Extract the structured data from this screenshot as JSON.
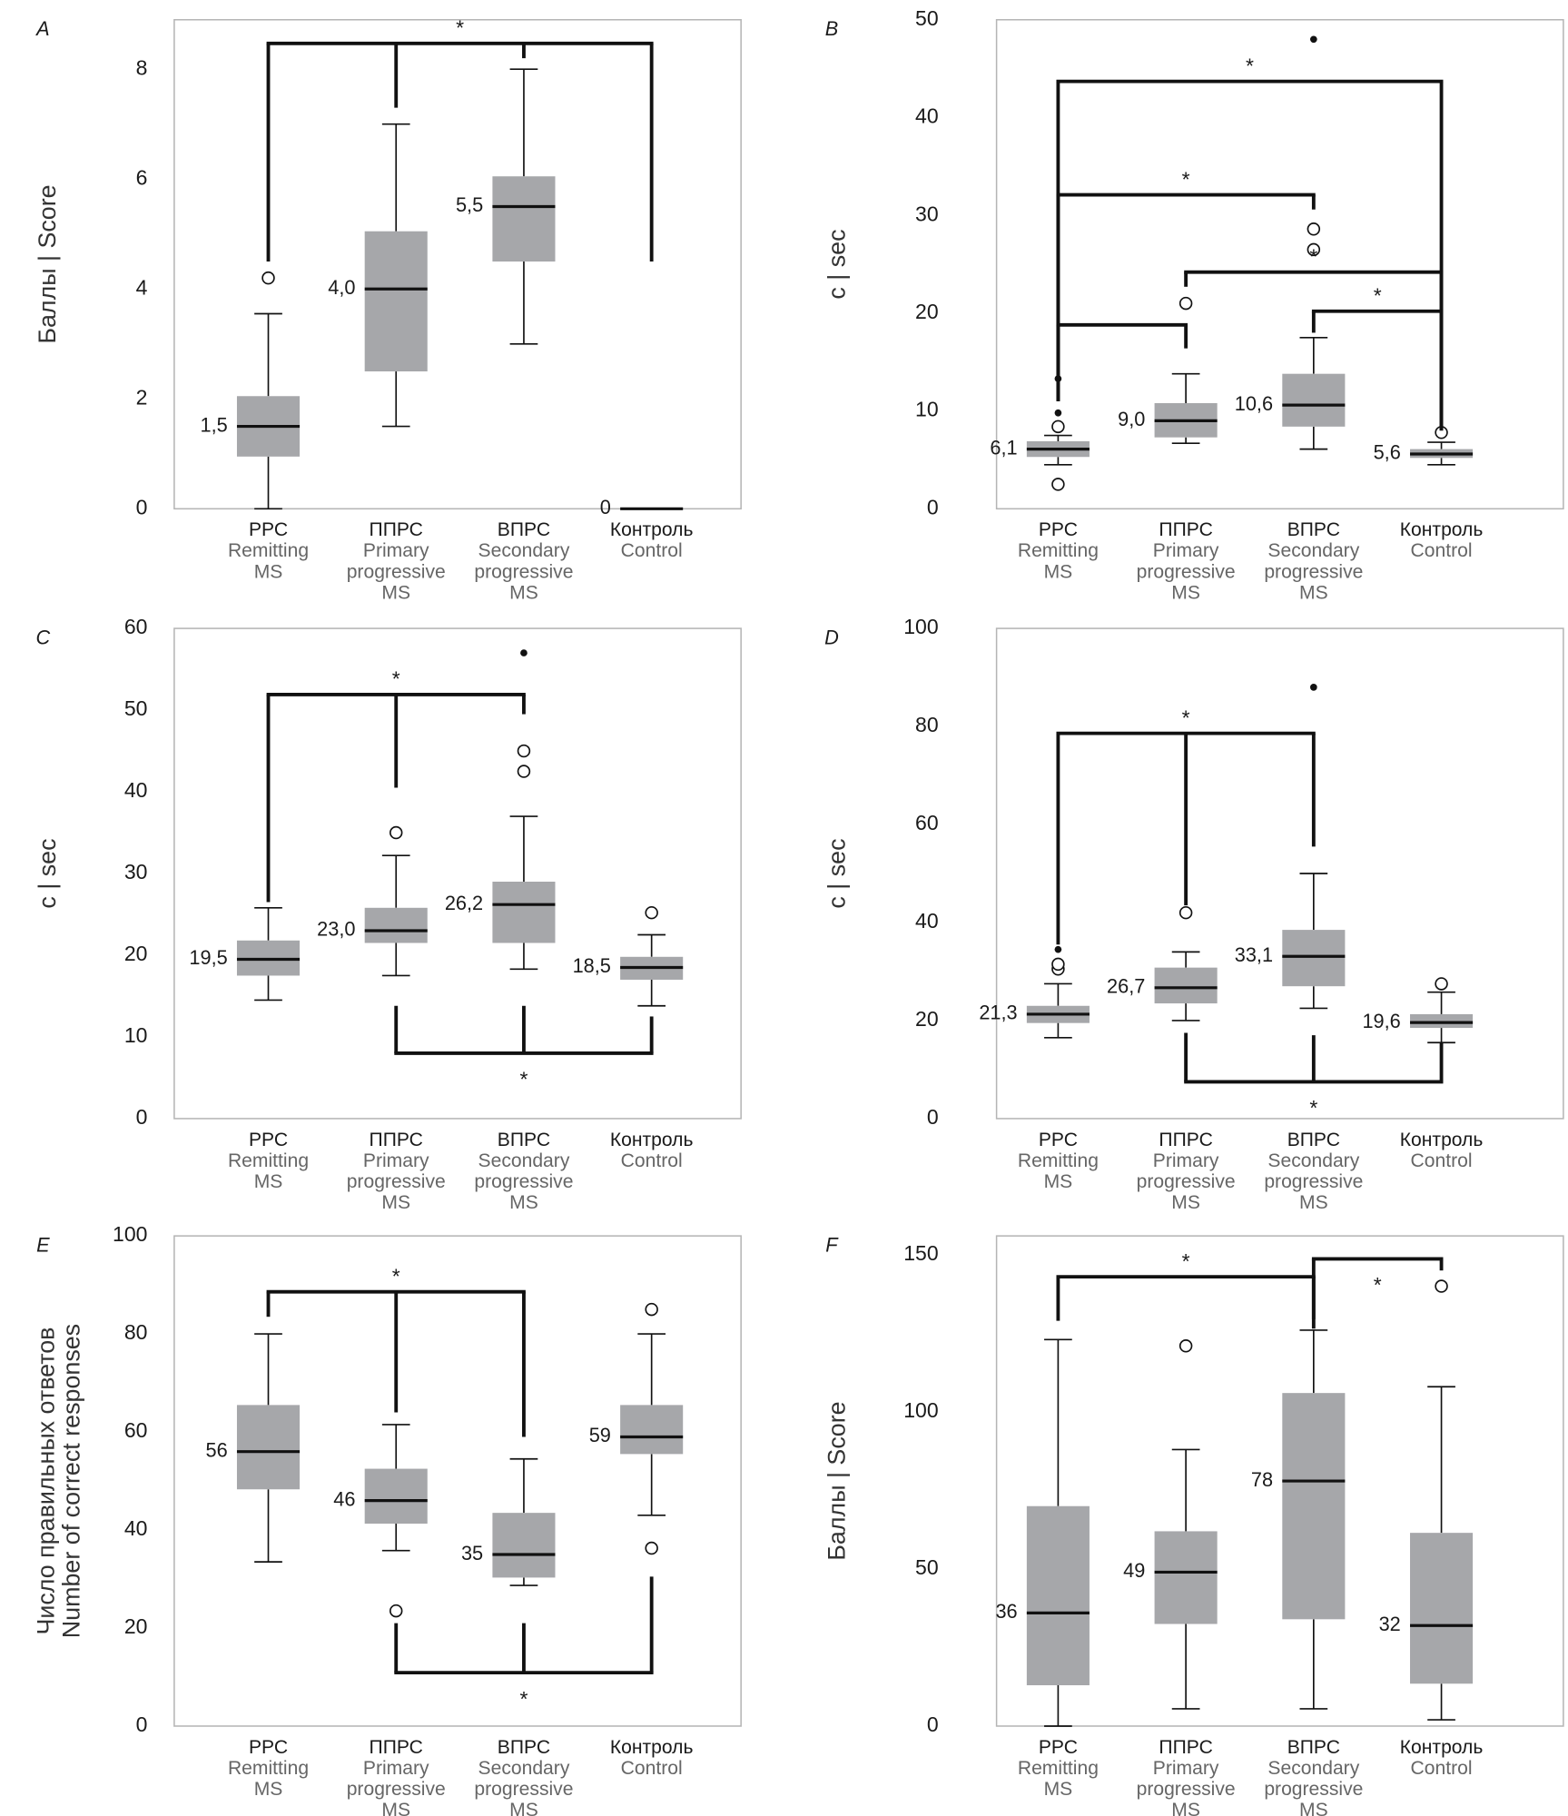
{
  "chart_data": [
    {
      "type": "box",
      "panel": "A",
      "ylabel": [
        "Баллы | Score"
      ],
      "color": "#a6a7aa",
      "categories": [
        [
          "РРС",
          "Remitting",
          "MS"
        ],
        [
          "ППРС",
          "Primary",
          "progressive",
          "MS"
        ],
        [
          "ВПРС",
          "Secondary",
          "progressive",
          "MS"
        ],
        [
          "Контроль",
          "Control"
        ]
      ],
      "ylim": [
        0,
        8.9
      ],
      "yticks": [
        0,
        2,
        4,
        6,
        8
      ],
      "boxes": [
        {
          "whislo": 0,
          "q1": 0.95,
          "median": 1.5,
          "q3": 2.05,
          "whishi": 3.55,
          "outliers": [
            4.2
          ],
          "median_label": "1,5"
        },
        {
          "whislo": 1.5,
          "q1": 2.5,
          "median": 4.0,
          "q3": 5.05,
          "whishi": 7.0,
          "median_label": "4,0"
        },
        {
          "whislo": 3.0,
          "q1": 4.5,
          "median": 5.5,
          "q3": 6.05,
          "whishi": 8.0,
          "median_label": "5,5"
        },
        {
          "whislo": 0,
          "q1": 0,
          "median": 0,
          "q3": 0,
          "whishi": 0,
          "median_label": "0"
        }
      ],
      "brackets": [
        {
          "y": 8.47,
          "drops": [
            [
              0,
              4.5
            ],
            [
              1,
              7.3
            ],
            [
              2,
              8.2
            ],
            [
              3,
              4.5
            ]
          ],
          "text": "*"
        }
      ]
    },
    {
      "type": "box",
      "panel": "B",
      "ylabel": [
        "с | sec"
      ],
      "color": "#a6a7aa",
      "categories": [
        [
          "РРС",
          "Remitting",
          "MS"
        ],
        [
          "ППРС",
          "Primary",
          "progressive",
          "MS"
        ],
        [
          "ВПРС",
          "Secondary",
          "progressive",
          "MS"
        ],
        [
          "Контроль",
          "Control"
        ]
      ],
      "ylim": [
        0,
        50
      ],
      "yticks": [
        0,
        10,
        20,
        30,
        40,
        50
      ],
      "boxes": [
        {
          "whislo": 4.5,
          "q1": 5.3,
          "median": 6.1,
          "q3": 6.9,
          "whishi": 7.5,
          "outliers": [
            2.5,
            8.4
          ],
          "extremes": [
            9.8,
            13.3
          ],
          "median_label": "6,1"
        },
        {
          "whislo": 6.7,
          "q1": 7.3,
          "median": 9.0,
          "q3": 10.8,
          "whishi": 13.8,
          "outliers": [
            21
          ],
          "median_label": "9,0"
        },
        {
          "whislo": 6.1,
          "q1": 8.4,
          "median": 10.6,
          "q3": 13.8,
          "whishi": 17.5,
          "outliers": [
            26.5,
            28.6
          ],
          "extremes": [
            48
          ],
          "median_label": "10,6"
        },
        {
          "whislo": 4.5,
          "q1": 5.2,
          "median": 5.6,
          "q3": 6.1,
          "whishi": 6.8,
          "outliers": [
            7.8
          ],
          "median_label": "5,6"
        }
      ],
      "brackets": [
        {
          "y": 43.7,
          "drops": [
            [
              0,
              11
            ],
            [
              3,
              8
            ]
          ],
          "text": "*"
        },
        {
          "y": 32.1,
          "drops": [
            [
              0,
              11
            ],
            [
              2,
              30.6
            ]
          ],
          "text": "*"
        },
        {
          "y": 24.2,
          "drops": [
            [
              1,
              22.7
            ],
            [
              3,
              8
            ]
          ],
          "text": "*"
        },
        {
          "y": 18.8,
          "drops": [
            [
              0,
              11
            ],
            [
              1,
              16.4
            ]
          ]
        },
        {
          "y": 20.2,
          "drops": [
            [
              2,
              18
            ],
            [
              3,
              8
            ]
          ],
          "text": "*"
        }
      ]
    },
    {
      "type": "box",
      "panel": "C",
      "ylabel": [
        "с | sec"
      ],
      "color": "#a6a7aa",
      "categories": [
        [
          "РРС",
          "Remitting",
          "MS"
        ],
        [
          "ППРС",
          "Primary",
          "progressive",
          "MS"
        ],
        [
          "ВПРС",
          "Secondary",
          "progressive",
          "MS"
        ],
        [
          "Контроль",
          "Control"
        ]
      ],
      "ylim": [
        0,
        60
      ],
      "yticks": [
        0,
        10,
        20,
        30,
        40,
        50,
        60
      ],
      "boxes": [
        {
          "whislo": 14.5,
          "q1": 17.5,
          "median": 19.5,
          "q3": 21.8,
          "whishi": 25.8,
          "median_label": "19,5"
        },
        {
          "whislo": 17.5,
          "q1": 21.5,
          "median": 23.0,
          "q3": 25.8,
          "whishi": 32.2,
          "outliers": [
            35
          ],
          "median_label": "23,0"
        },
        {
          "whislo": 18.3,
          "q1": 21.5,
          "median": 26.2,
          "q3": 29,
          "whishi": 37,
          "outliers": [
            42.5,
            45
          ],
          "extremes": [
            57
          ],
          "median_label": "26,2"
        },
        {
          "whislo": 13.8,
          "q1": 17,
          "median": 18.5,
          "q3": 19.8,
          "whishi": 22.5,
          "outliers": [
            25.2
          ],
          "median_label": "18,5"
        }
      ],
      "brackets": [
        {
          "y": 51.9,
          "drops": [
            [
              0,
              26.5
            ],
            [
              1,
              40.5
            ],
            [
              2,
              49.5
            ]
          ],
          "text": "*"
        },
        {
          "y": 8,
          "drops": [
            [
              1,
              13.8
            ],
            [
              2,
              13.8
            ],
            [
              3,
              12.5
            ]
          ],
          "text": "*"
        }
      ]
    },
    {
      "type": "box",
      "panel": "D",
      "ylabel": [
        "с | sec"
      ],
      "color": "#a6a7aa",
      "categories": [
        [
          "РРС",
          "Remitting",
          "MS"
        ],
        [
          "ППРС",
          "Primary",
          "progressive",
          "MS"
        ],
        [
          "ВПРС",
          "Secondary",
          "progressive",
          "MS"
        ],
        [
          "Контроль",
          "Control"
        ]
      ],
      "ylim": [
        0,
        100
      ],
      "yticks": [
        0,
        20,
        40,
        60,
        80,
        100
      ],
      "boxes": [
        {
          "whislo": 16.5,
          "q1": 19.5,
          "median": 21.3,
          "q3": 23,
          "whishi": 27.5,
          "outliers": [
            30.5,
            31.5
          ],
          "extremes": [
            34.5
          ],
          "median_label": "21,3"
        },
        {
          "whislo": 20,
          "q1": 23.5,
          "median": 26.7,
          "q3": 30.8,
          "whishi": 34,
          "outliers": [
            42
          ],
          "median_label": "26,7"
        },
        {
          "whislo": 22.5,
          "q1": 27,
          "median": 33.1,
          "q3": 38.5,
          "whishi": 50,
          "extremes": [
            88
          ],
          "median_label": "33,1"
        },
        {
          "whislo": 15.5,
          "q1": 18.5,
          "median": 19.6,
          "q3": 21.3,
          "whishi": 25.8,
          "outliers": [
            27.5
          ],
          "median_label": "19,6"
        }
      ],
      "brackets": [
        {
          "y": 78.6,
          "drops": [
            [
              0,
              35.5
            ],
            [
              1,
              43.5
            ],
            [
              2,
              55.5
            ]
          ],
          "text": "*"
        },
        {
          "y": 7.5,
          "drops": [
            [
              1,
              17.5
            ],
            [
              2,
              17
            ],
            [
              3,
              15.5
            ]
          ],
          "text": "*"
        }
      ]
    },
    {
      "type": "box",
      "panel": "E",
      "ylabel": [
        "Число правильных ответов",
        "Number of correct responses"
      ],
      "color": "#a6a7aa",
      "categories": [
        [
          "РРС",
          "Remitting",
          "MS"
        ],
        [
          "ППРС",
          "Primary",
          "progressive",
          "MS"
        ],
        [
          "ВПРС",
          "Secondary",
          "progressive",
          "MS"
        ],
        [
          "Контроль",
          "Control"
        ]
      ],
      "ylim": [
        0,
        100
      ],
      "yticks": [
        0,
        20,
        40,
        60,
        80,
        100
      ],
      "boxes": [
        {
          "whislo": 33.5,
          "q1": 48.3,
          "median": 56,
          "q3": 65.5,
          "whishi": 80,
          "median_label": "56"
        },
        {
          "whislo": 35.8,
          "q1": 41.3,
          "median": 46,
          "q3": 52.5,
          "whishi": 61.5,
          "outliers": [
            23.5
          ],
          "median_label": "46"
        },
        {
          "whislo": 28.7,
          "q1": 30.3,
          "median": 35,
          "q3": 43.5,
          "whishi": 54.5,
          "median_label": "35"
        },
        {
          "whislo": 43,
          "q1": 55.5,
          "median": 59,
          "q3": 65.5,
          "whishi": 80,
          "outliers": [
            36.3,
            85
          ],
          "median_label": "59"
        }
      ],
      "brackets": [
        {
          "y": 88.6,
          "drops": [
            [
              0,
              83.5
            ],
            [
              1,
              64
            ],
            [
              2,
              59
            ]
          ],
          "text": "*"
        },
        {
          "y": 10.9,
          "drops": [
            [
              1,
              21
            ],
            [
              2,
              21
            ],
            [
              3,
              30.5
            ]
          ],
          "text": "*"
        }
      ]
    },
    {
      "type": "box",
      "panel": "F",
      "ylabel": [
        "Баллы | Score"
      ],
      "color": "#a6a7aa",
      "categories": [
        [
          "РРС",
          "Remitting",
          "MS"
        ],
        [
          "ППРС",
          "Primary",
          "progressive",
          "MS"
        ],
        [
          "ВПРС",
          "Secondary",
          "progressive",
          "MS"
        ],
        [
          "Контроль",
          "Control"
        ]
      ],
      "ylim": [
        0,
        156
      ],
      "yticks": [
        0,
        50,
        100,
        150
      ],
      "boxes": [
        {
          "whislo": 0,
          "q1": 13,
          "median": 36,
          "q3": 70,
          "whishi": 123,
          "median_label": "36"
        },
        {
          "whislo": 5.5,
          "q1": 32.5,
          "median": 49,
          "q3": 62,
          "whishi": 88,
          "outliers": [
            121
          ],
          "median_label": "49"
        },
        {
          "whislo": 5.5,
          "q1": 34,
          "median": 78,
          "q3": 106,
          "whishi": 126,
          "median_label": "78"
        },
        {
          "whislo": 2,
          "q1": 13.5,
          "median": 32,
          "q3": 61.5,
          "whishi": 108,
          "outliers": [
            140
          ],
          "median_label": "32"
        }
      ],
      "brackets": [
        {
          "y": 143,
          "drops": [
            [
              0,
              129
            ],
            [
              2,
              126.5
            ]
          ],
          "text": "*"
        },
        {
          "y": 148.7,
          "drops": [
            [
              2,
              129.5
            ],
            [
              3,
              145
            ]
          ],
          "text": "*",
          "text_below": true
        }
      ]
    }
  ]
}
